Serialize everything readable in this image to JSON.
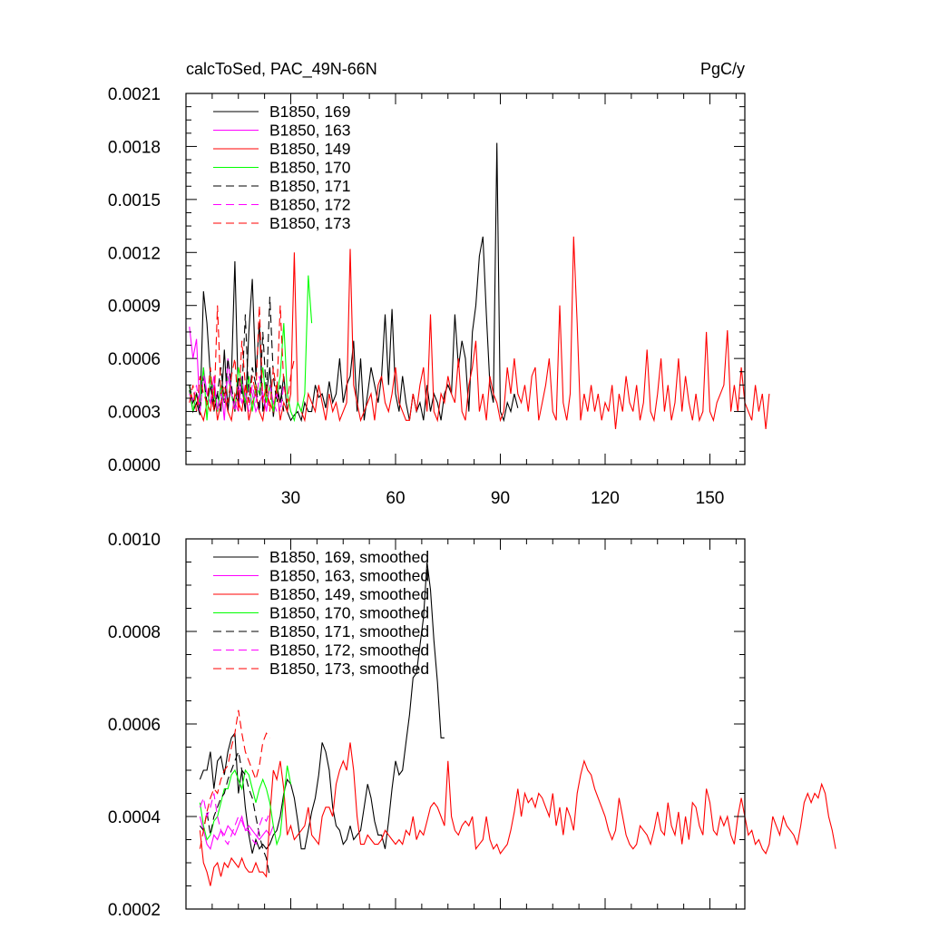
{
  "header": {
    "left": "calcToSed, PAC_49N-66N",
    "right": "PgC/y"
  },
  "chart_data": [
    {
      "type": "line",
      "xlim": [
        0,
        160
      ],
      "ylim": [
        0,
        0.0021
      ],
      "xticks": [
        30,
        60,
        90,
        120,
        150
      ],
      "xtick_labels": [
        "30",
        "60",
        "90",
        "120",
        "150"
      ],
      "yticks": [
        0,
        0.0003,
        0.0006,
        0.0009,
        0.0012,
        0.0015,
        0.0018,
        0.0021
      ],
      "ytick_labels": [
        "0.0000",
        "0.0003",
        "0.0006",
        "0.0009",
        "0.0012",
        "0.0015",
        "0.0018",
        "0.0021"
      ],
      "legend_position": "top-left",
      "series": [
        {
          "name": "B1850, 169",
          "color": "#000000",
          "dash": "solid",
          "x0": 1,
          "values": [
            0.00042,
            0.0003,
            0.00035,
            0.00028,
            0.00098,
            0.0008,
            0.0005,
            0.00035,
            0.0004,
            0.0003,
            0.00065,
            0.0003,
            0.0005,
            0.00115,
            0.00035,
            0.00045,
            0.0003,
            0.00075,
            0.00105,
            0.0005,
            0.0008,
            0.0003,
            0.0004,
            0.00055,
            0.00027,
            0.00045,
            0.00035,
            0.0005,
            0.0003,
            0.00025,
            0.00028,
            0.0003,
            0.00025,
            0.00035,
            0.0003,
            0.0003,
            0.00045,
            0.00038,
            0.0004,
            0.00032,
            0.00047,
            0.00035,
            0.0004,
            0.0006,
            0.00035,
            0.00045,
            0.0005,
            0.0007,
            0.0003,
            0.0006,
            0.00025,
            0.0004,
            0.00055,
            0.00045,
            0.00035,
            0.0005,
            0.00085,
            0.00045,
            0.00088,
            0.0004,
            0.0003,
            0.0005,
            0.00035,
            0.00025,
            0.0004,
            0.0003,
            0.00035,
            0.00025,
            0.00045,
            0.0003,
            0.0004,
            0.00035,
            0.00025,
            0.0004,
            0.00045,
            0.0004,
            0.00085,
            0.00055,
            0.0007,
            0.0006,
            0.0003,
            0.00075,
            0.0009,
            0.00118,
            0.00129,
            0.00085,
            0.00045,
            0.00035,
            0.00182,
            0.0003,
            0.00025,
            0.00035,
            0.0003,
            0.0004,
            0.00032
          ]
        },
        {
          "name": "B1850, 163",
          "color": "#ff00ff",
          "dash": "solid",
          "x0": 1,
          "values": [
            0.00078,
            0.0006,
            0.00071,
            0.0003,
            0.00055,
            0.0004,
            0.00035,
            0.0005,
            0.0003,
            0.00045,
            0.00025,
            0.0006,
            0.0004,
            0.00035,
            0.0003,
            0.0005,
            0.00035,
            0.00045,
            0.0004,
            0.0003,
            0.00035,
            0.0004,
            0.0003,
            0.00045,
            0.00035,
            0.0003
          ]
        },
        {
          "name": "B1850, 149",
          "color": "#ff0000",
          "dash": "solid",
          "x0": 1,
          "values": [
            0.00045,
            0.00035,
            0.0004,
            0.0003,
            0.00025,
            0.00035,
            0.0003,
            0.00045,
            0.00025,
            0.00035,
            0.0004,
            0.0003,
            0.00025,
            0.0004,
            0.00035,
            0.0003,
            0.00045,
            0.00025,
            0.00035,
            0.0004,
            0.0003,
            0.00025,
            0.0004,
            0.00035,
            0.0003,
            0.00045,
            0.00025,
            0.00035,
            0.0003,
            0.0004,
            0.0012,
            0.00035,
            0.0003,
            0.00025,
            0.0004,
            0.00035,
            0.0003,
            0.00045,
            0.00035,
            0.00025,
            0.0004,
            0.0003,
            0.00035,
            0.00025,
            0.0003,
            0.00035,
            0.00122,
            0.00045,
            0.00035,
            0.00025,
            0.0003,
            0.00035,
            0.0004,
            0.00025,
            0.00045,
            0.0005,
            0.00035,
            0.0003,
            0.0004,
            0.00055,
            0.00035,
            0.0003,
            0.00025,
            0.00025,
            0.0004,
            0.0003,
            0.00045,
            0.00055,
            0.0003,
            0.00085,
            0.0003,
            0.00025,
            0.0004,
            0.00035,
            0.0005,
            0.0004,
            0.00035,
            0.0006,
            0.0003,
            0.00025,
            0.00045,
            0.00055,
            0.0007,
            0.0003,
            0.0004,
            0.00025,
            0.0005,
            0.0004,
            0.00035,
            0.00025,
            0.0003,
            0.00055,
            0.0004,
            0.0006,
            0.0004,
            0.00035,
            0.00045,
            0.0003,
            0.0005,
            0.00055,
            0.00025,
            0.00035,
            0.00045,
            0.0006,
            0.0003,
            0.00025,
            0.0009,
            0.00035,
            0.00025,
            0.0004,
            0.00129,
            0.0008,
            0.00025,
            0.0004,
            0.0003,
            0.00045,
            0.0003,
            0.0004,
            0.00025,
            0.00035,
            0.0003,
            0.00045,
            0.0002,
            0.0004,
            0.0003,
            0.0005,
            0.00035,
            0.0003,
            0.00045,
            0.00025,
            0.00035,
            0.00065,
            0.0003,
            0.00025,
            0.0004,
            0.0006,
            0.0003,
            0.00045,
            0.00025,
            0.00035,
            0.0006,
            0.0003,
            0.0005,
            0.00035,
            0.00025,
            0.0004,
            0.00025,
            0.0003,
            0.00075,
            0.0003,
            0.00025,
            0.00035,
            0.0004,
            0.00045,
            0.00076,
            0.0003,
            0.00045,
            0.0003,
            0.00055,
            0.00035,
            0.0003,
            0.00025,
            0.00045,
            0.0003,
            0.0004,
            0.0002,
            0.0004
          ]
        },
        {
          "name": "B1850, 170",
          "color": "#00ff00",
          "dash": "solid",
          "x0": 1,
          "values": [
            0.00045,
            0.0003,
            0.0004,
            0.00035,
            0.00055,
            0.00025,
            0.0005,
            0.0004,
            0.0003,
            0.00045,
            0.00035,
            0.0005,
            0.0004,
            0.0003,
            0.00055,
            0.00045,
            0.00035,
            0.0005,
            0.0003,
            0.00045,
            0.0004,
            0.00055,
            0.00035,
            0.00045,
            0.0003,
            0.0004,
            0.0005,
            0.0008,
            0.0004,
            0.0003,
            0.00025,
            0.00035,
            0.0003,
            0.0004,
            0.00107,
            0.0008
          ]
        },
        {
          "name": "B1850, 171",
          "color": "#000000",
          "dash": "dash",
          "x0": 1,
          "values": [
            0.00045,
            0.00035,
            0.0004,
            0.0003,
            0.0005,
            0.00035,
            0.00045,
            0.0003,
            0.0004,
            0.00055,
            0.00035,
            0.0006,
            0.00045,
            0.0003,
            0.0005,
            0.0004,
            0.00085,
            0.00035,
            0.00055,
            0.00045,
            0.0003,
            0.00075,
            0.0004,
            0.00095,
            0.0005,
            0.00035,
            0.00045,
            0.0003
          ]
        },
        {
          "name": "B1850, 172",
          "color": "#ff00ff",
          "dash": "dash",
          "x0": 1,
          "values": [
            0.0004,
            0.00035,
            0.00045,
            0.0003,
            0.0005,
            0.0004,
            0.00035,
            0.00045,
            0.0003,
            0.0004,
            0.00035,
            0.0005,
            0.0004,
            0.0003,
            0.00045,
            0.00035,
            0.0004,
            0.0003,
            0.00045,
            0.00035,
            0.0005,
            0.0004,
            0.0003,
            0.00045,
            0.00035,
            0.0004,
            0.0003,
            0.00045
          ]
        },
        {
          "name": "B1850, 173",
          "color": "#ff0000",
          "dash": "dash",
          "x0": 1,
          "values": [
            0.00035,
            0.00045,
            0.0003,
            0.0005,
            0.0004,
            0.00035,
            0.00055,
            0.0003,
            0.0009,
            0.0004,
            0.00045,
            0.00035,
            0.0005,
            0.0006,
            0.0003,
            0.0007,
            0.00045,
            0.00035,
            0.0005,
            0.0004,
            0.0009,
            0.00035,
            0.00045,
            0.0003,
            0.00055,
            0.0004,
            0.0009,
            0.00045,
            0.00035,
            0.0005,
            0.0006
          ]
        }
      ]
    },
    {
      "type": "line",
      "xlim": [
        0,
        160
      ],
      "ylim": [
        0.0002,
        0.001
      ],
      "xticks": [
        30,
        60,
        90,
        120,
        150
      ],
      "yticks": [
        0.0002,
        0.0004,
        0.0006,
        0.0008,
        0.001
      ],
      "ytick_labels": [
        "0.0002",
        "0.0004",
        "0.0006",
        "0.0008",
        "0.0010"
      ],
      "legend_position": "top-left",
      "series": [
        {
          "name": "B1850, 169, smoothed",
          "color": "#000000",
          "dash": "solid",
          "x0": 4,
          "values": [
            0.00048,
            0.0005,
            0.0005,
            0.00054,
            0.00046,
            0.00052,
            0.00053,
            0.00049,
            0.00054,
            0.00057,
            0.00058,
            0.00045,
            0.0005,
            0.00042,
            0.00036,
            0.00032,
            0.00035,
            0.00033,
            0.00034,
            0.00033,
            0.00034,
            0.00036,
            0.00037,
            0.0004,
            0.00045,
            0.00048,
            0.00047,
            0.00044,
            0.00039,
            0.00033,
            0.00033,
            0.00037,
            0.00041,
            0.00044,
            0.00049,
            0.00056,
            0.00054,
            0.0005,
            0.00042,
            0.00038,
            0.00037,
            0.00034,
            0.00035,
            0.00038,
            0.00035,
            0.00036,
            0.00037,
            0.00042,
            0.00047,
            0.00044,
            0.00039,
            0.00036,
            0.00036,
            0.00033,
            0.00039,
            0.00046,
            0.00052,
            0.00049,
            0.0005,
            0.00056,
            0.00062,
            0.0007,
            0.00071,
            0.00077,
            0.00083,
            0.00095,
            0.00089,
            0.00078,
            0.00069,
            0.00057,
            0.00057
          ]
        },
        {
          "name": "B1850, 163, smoothed",
          "color": "#ff00ff",
          "dash": "solid",
          "x0": 4,
          "values": [
            0.0004,
            0.00037,
            0.00034,
            0.00033,
            0.00036,
            0.00035,
            0.00037,
            0.00036,
            0.00038,
            0.00037,
            0.00036,
            0.00038,
            0.0004,
            0.00037,
            0.00038,
            0.00037,
            0.00036,
            0.00035,
            0.00036,
            0.00037,
            0.00036,
            0.00038
          ]
        },
        {
          "name": "B1850, 149, smoothed",
          "color": "#ff0000",
          "dash": "solid",
          "x0": 4,
          "values": [
            0.00037,
            0.0003,
            0.00028,
            0.00025,
            0.00029,
            0.0003,
            0.00027,
            0.0003,
            0.00029,
            0.00031,
            0.0003,
            0.00029,
            0.00031,
            0.00029,
            0.00028,
            0.00028,
            0.0003,
            0.00028,
            0.00028,
            0.00027,
            0.0004,
            0.0005,
            0.00048,
            0.00052,
            0.00046,
            0.00036,
            0.00038,
            0.00035,
            0.00036,
            0.00037,
            0.00038,
            0.00042,
            0.00036,
            0.00035,
            0.00034,
            0.0004,
            0.00042,
            0.00042,
            0.0004,
            0.00047,
            0.0005,
            0.00052,
            0.0005,
            0.00056,
            0.0005,
            0.0004,
            0.00034,
            0.00034,
            0.00036,
            0.00035,
            0.00034,
            0.00034,
            0.00035,
            0.00037,
            0.00036,
            0.00035,
            0.00034,
            0.00035,
            0.00034,
            0.00037,
            0.00036,
            0.0004,
            0.00035,
            0.00037,
            0.00036,
            0.00039,
            0.00042,
            0.00043,
            0.00042,
            0.0004,
            0.00038,
            0.00052,
            0.0004,
            0.00037,
            0.00036,
            0.00038,
            0.00039,
            0.00038,
            0.0004,
            0.00033,
            0.00034,
            0.00035,
            0.0004,
            0.00035,
            0.00033,
            0.00034,
            0.00032,
            0.00033,
            0.00034,
            0.00037,
            0.00041,
            0.00046,
            0.0004,
            0.00045,
            0.00043,
            0.00044,
            0.00042,
            0.00045,
            0.00044,
            0.00042,
            0.0004,
            0.00045,
            0.00038,
            0.00042,
            0.00036,
            0.00042,
            0.0004,
            0.00037,
            0.00045,
            0.00049,
            0.00052,
            0.0005,
            0.00049,
            0.00046,
            0.00044,
            0.00042,
            0.0004,
            0.00037,
            0.00035,
            0.00037,
            0.00044,
            0.0004,
            0.00036,
            0.00034,
            0.00033,
            0.00034,
            0.00038,
            0.00037,
            0.00036,
            0.00034,
            0.00037,
            0.00041,
            0.00037,
            0.00036,
            0.00043,
            0.00038,
            0.00036,
            0.00041,
            0.00034,
            0.0004,
            0.00035,
            0.00043,
            0.00042,
            0.00038,
            0.00036,
            0.00046,
            0.00043,
            0.00037,
            0.00036,
            0.0004,
            0.00038,
            0.0004,
            0.00036,
            0.00034,
            0.0004,
            0.00044,
            0.0004,
            0.00036,
            0.00037,
            0.00034,
            0.00035,
            0.00033,
            0.00032,
            0.00034,
            0.0004,
            0.00038,
            0.00036,
            0.0004,
            0.00038,
            0.00037,
            0.00036,
            0.00034,
            0.00038,
            0.00043,
            0.00045,
            0.00043,
            0.00045,
            0.00044,
            0.00047,
            0.00045,
            0.0004,
            0.00037,
            0.00033
          ]
        },
        {
          "name": "B1850, 170, smoothed",
          "color": "#00ff00",
          "dash": "solid",
          "x0": 4,
          "values": [
            0.00043,
            0.00038,
            0.00035,
            0.00036,
            0.00039,
            0.0004,
            0.00043,
            0.00046,
            0.00046,
            0.00049,
            0.0005,
            0.00048,
            0.00046,
            0.0005,
            0.00049,
            0.00046,
            0.00043,
            0.00046,
            0.00048,
            0.00046,
            0.00043,
            0.00038,
            0.00034,
            0.00036,
            0.00044,
            0.00051,
            0.00047
          ]
        },
        {
          "name": "B1850, 171, smoothed",
          "color": "#000000",
          "dash": "dash",
          "x0": 4,
          "values": [
            0.00038,
            0.00037,
            0.00041,
            0.00036,
            0.0004,
            0.00042,
            0.00044,
            0.00045,
            0.00048,
            0.0005,
            0.00052,
            0.00054,
            0.0005,
            0.00049,
            0.00046,
            0.00044,
            0.0004,
            0.00036,
            0.00033,
            0.00031,
            0.00027
          ]
        },
        {
          "name": "B1850, 172, smoothed",
          "color": "#ff00ff",
          "dash": "dash",
          "x0": 4,
          "values": [
            0.00042,
            0.00044,
            0.0004,
            0.00042,
            0.00045,
            0.0004,
            0.00037,
            0.00035,
            0.00034,
            0.00036,
            0.00038,
            0.0004,
            0.00039,
            0.00037,
            0.00037,
            0.00035,
            0.00034,
            0.00038,
            0.0004,
            0.00039,
            0.00041
          ]
        },
        {
          "name": "B1850, 173, smoothed",
          "color": "#ff0000",
          "dash": "dash",
          "x0": 4,
          "values": [
            0.00033,
            0.00037,
            0.00041,
            0.00044,
            0.00046,
            0.00045,
            0.00048,
            0.0005,
            0.00051,
            0.00055,
            0.00058,
            0.00063,
            0.00058,
            0.00054,
            0.00052,
            0.0005,
            0.00048,
            0.00051,
            0.00056,
            0.00058,
            0.00057
          ]
        }
      ]
    }
  ]
}
